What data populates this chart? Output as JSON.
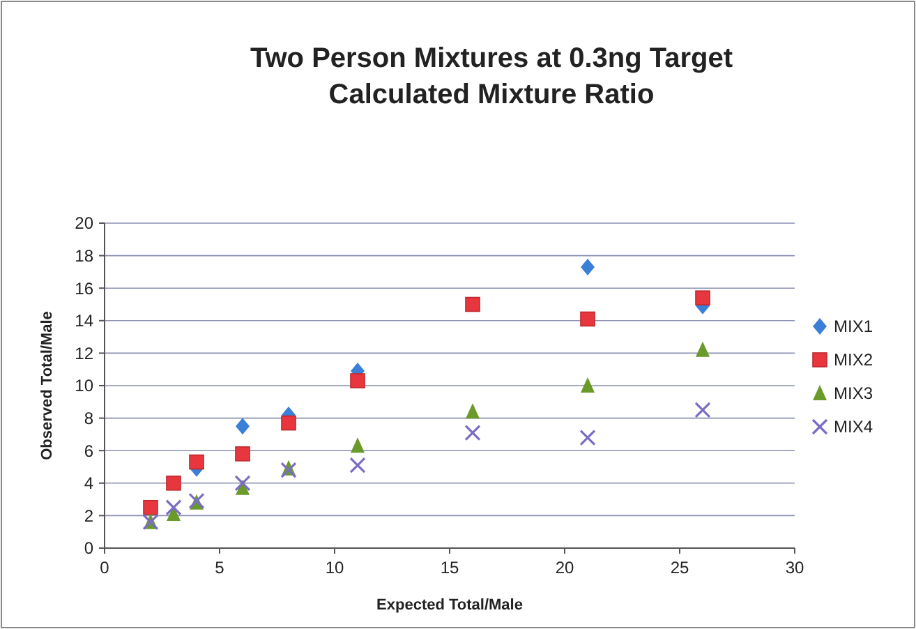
{
  "chart_data": {
    "type": "scatter",
    "title": "Two Person Mixtures at 0.3ng Target\nCalculated Mixture Ratio",
    "xlabel": "Expected Total/Male",
    "ylabel": "Observed Total/Male",
    "x": [
      2,
      3,
      4,
      6,
      8,
      11,
      16,
      21,
      26
    ],
    "series": [
      {
        "name": "MIX1",
        "color": "#3a7fd8",
        "marker": "diamond",
        "values": [
          null,
          null,
          4.9,
          7.5,
          8.2,
          10.9,
          null,
          17.3,
          14.9
        ]
      },
      {
        "name": "MIX2",
        "color": "#e8363e",
        "marker": "square",
        "values": [
          2.5,
          4.0,
          5.3,
          5.8,
          7.7,
          10.3,
          15.0,
          14.1,
          15.4
        ]
      },
      {
        "name": "MIX3",
        "color": "#6a9a2a",
        "marker": "triangle",
        "values": [
          1.6,
          2.1,
          2.8,
          3.7,
          4.9,
          6.3,
          8.4,
          10.0,
          12.2
        ]
      },
      {
        "name": "MIX4",
        "color": "#7b6cc4",
        "marker": "cross",
        "values": [
          1.6,
          2.5,
          2.9,
          4.0,
          4.8,
          5.1,
          7.1,
          6.8,
          8.5
        ]
      }
    ],
    "xlim": [
      0,
      30
    ],
    "xticks": [
      0,
      5,
      10,
      15,
      20,
      25,
      30
    ],
    "ylim": [
      0,
      20
    ],
    "yticks": [
      0,
      2,
      4,
      6,
      8,
      10,
      12,
      14,
      16,
      18,
      20
    ],
    "grid": "y",
    "legend": "right"
  }
}
